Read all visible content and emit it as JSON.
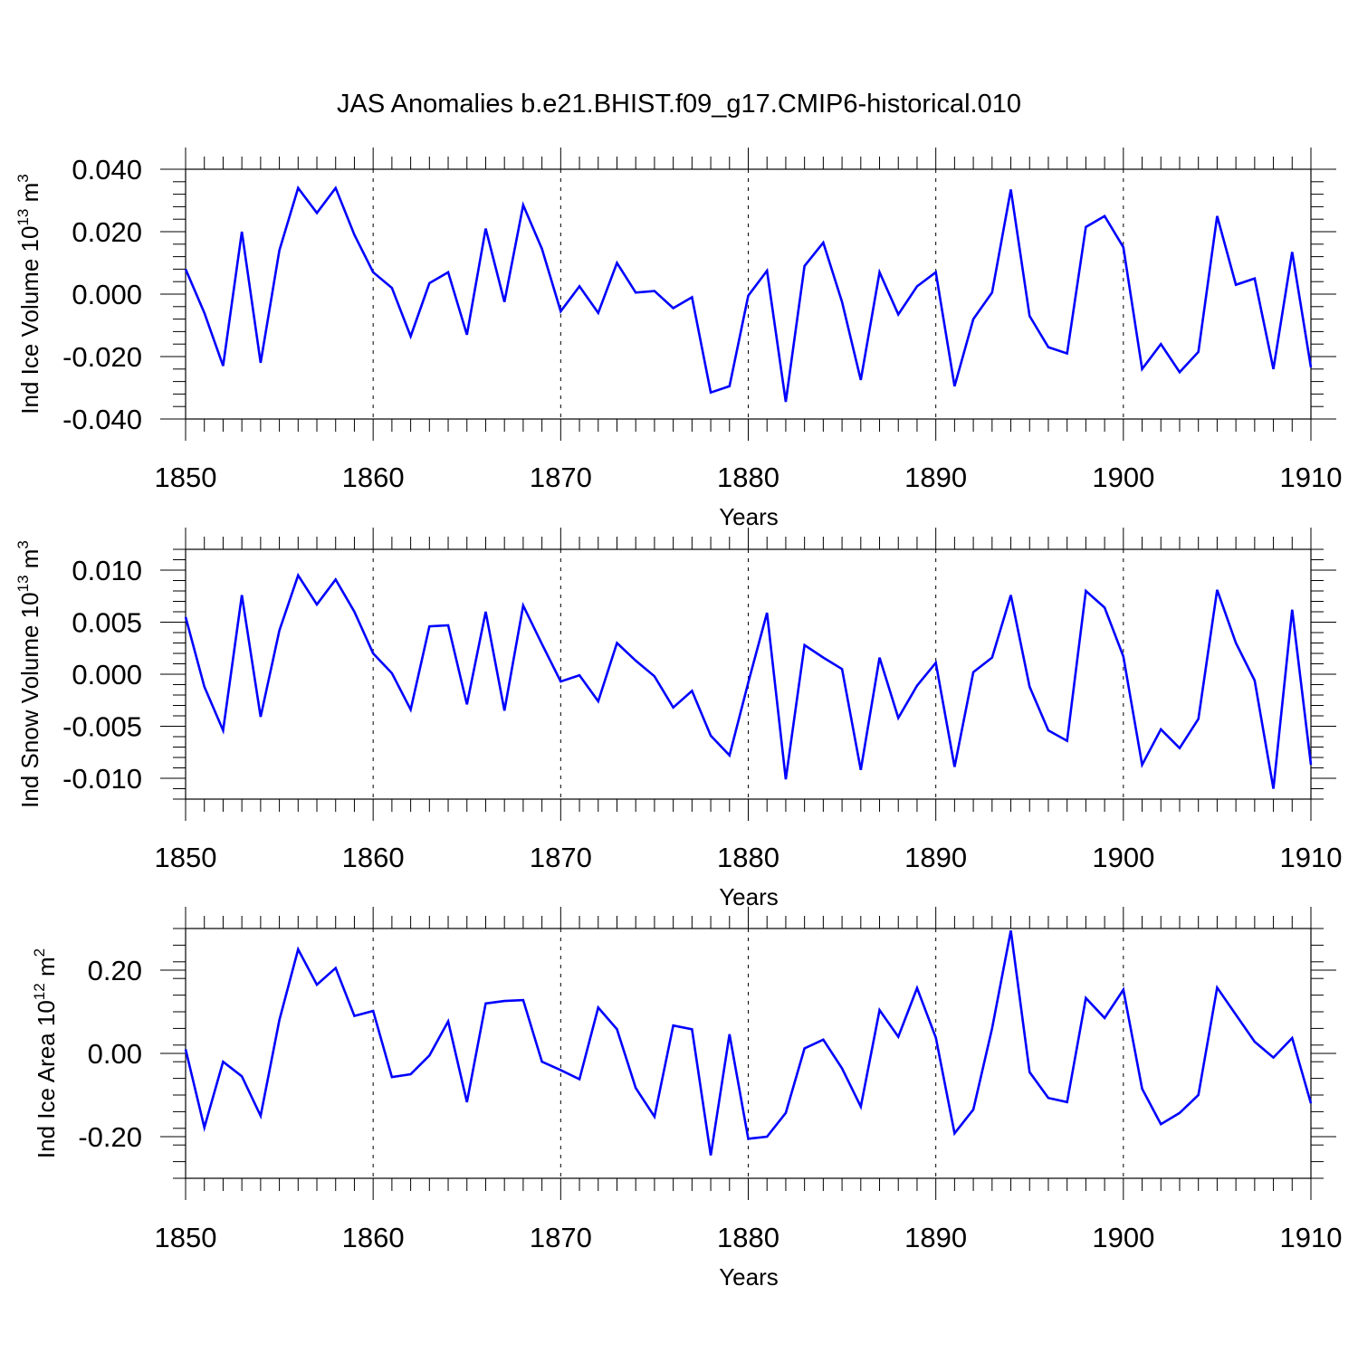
{
  "title": "JAS Anomalies b.e21.BHIST.f09_g17.CMIP6-historical.010",
  "line_color": "#0000ff",
  "chart_data": [
    {
      "type": "line",
      "name": "ice-volume",
      "ylabel_main": "Ind Ice Volume 10",
      "ylabel_exp": "13",
      "ylabel_unit": " m",
      "ylabel_unit_exp": "3",
      "xlabel": "Years",
      "xlim": [
        1850,
        1910
      ],
      "ylim": [
        -0.04,
        0.04
      ],
      "xticks": [
        1850,
        1860,
        1870,
        1880,
        1890,
        1900,
        1910
      ],
      "yticks": [
        -0.04,
        -0.02,
        0.0,
        0.02,
        0.04
      ],
      "ytick_labels": [
        "-0.040",
        "-0.020",
        "0.000",
        "0.020",
        "0.040"
      ],
      "x_start": 1850,
      "values": [
        0.008,
        -0.006,
        -0.023,
        0.02,
        -0.022,
        0.014,
        0.034,
        0.026,
        0.034,
        0.019,
        0.007,
        0.002,
        -0.0135,
        0.0035,
        0.007,
        -0.013,
        0.021,
        -0.0025,
        0.0285,
        0.0145,
        -0.0055,
        0.0025,
        -0.006,
        0.01,
        0.0005,
        0.001,
        -0.0045,
        -0.001,
        -0.0315,
        -0.0295,
        -0.0005,
        0.0075,
        -0.0345,
        0.009,
        0.0165,
        -0.0025,
        -0.0275,
        0.007,
        -0.0065,
        0.0025,
        0.007,
        -0.0295,
        -0.008,
        0.0005,
        0.0335,
        -0.007,
        -0.017,
        -0.019,
        0.0215,
        0.025,
        0.015,
        -0.024,
        -0.016,
        -0.025,
        -0.0185,
        0.025,
        0.003,
        0.005,
        -0.024,
        0.0135,
        -0.0235
      ]
    },
    {
      "type": "line",
      "name": "snow-volume",
      "ylabel_main": "Ind Snow Volume 10",
      "ylabel_exp": "13",
      "ylabel_unit": " m",
      "ylabel_unit_exp": "3",
      "xlabel": "Years",
      "xlim": [
        1850,
        1910
      ],
      "ylim": [
        -0.012,
        0.012
      ],
      "xticks": [
        1850,
        1860,
        1870,
        1880,
        1890,
        1900,
        1910
      ],
      "yticks": [
        -0.01,
        -0.005,
        0.0,
        0.005,
        0.01
      ],
      "ytick_labels": [
        "-0.010",
        "-0.005",
        "0.000",
        "0.005",
        "0.010"
      ],
      "x_start": 1850,
      "values": [
        0.0055,
        -0.0012,
        -0.0054,
        0.0076,
        -0.0041,
        0.0042,
        0.0095,
        0.0067,
        0.0091,
        0.006,
        0.002,
        0.0001,
        -0.0034,
        0.0046,
        0.0047,
        -0.0029,
        0.006,
        -0.0035,
        0.0066,
        0.0029,
        -0.0007,
        -0.0001,
        -0.0026,
        0.003,
        0.0013,
        -0.0002,
        -0.0032,
        -0.0016,
        -0.0059,
        -0.0078,
        -0.0008,
        0.0059,
        -0.0101,
        0.0028,
        0.0016,
        0.0005,
        -0.0092,
        0.0016,
        -0.0042,
        -0.0011,
        0.0011,
        -0.0089,
        0.0002,
        0.0016,
        0.0076,
        -0.0012,
        -0.0054,
        -0.0064,
        0.008,
        0.0064,
        0.0017,
        -0.0087,
        -0.0053,
        -0.0071,
        -0.0043,
        0.0081,
        0.003,
        -0.0006,
        -0.011,
        0.0062,
        -0.0087
      ]
    },
    {
      "type": "line",
      "name": "ice-area",
      "ylabel_main": "Ind Ice Area 10",
      "ylabel_exp": "12",
      "ylabel_unit": " m",
      "ylabel_unit_exp": "2",
      "xlabel": "Years",
      "xlim": [
        1850,
        1910
      ],
      "ylim": [
        -0.3,
        0.3
      ],
      "xticks": [
        1850,
        1860,
        1870,
        1880,
        1890,
        1900,
        1910
      ],
      "yticks": [
        -0.2,
        0.0,
        0.2
      ],
      "ytick_labels": [
        "-0.20",
        "0.00",
        "0.20"
      ],
      "x_start": 1850,
      "values": [
        0.01,
        -0.178,
        -0.02,
        -0.055,
        -0.15,
        0.08,
        0.25,
        0.165,
        0.205,
        0.09,
        0.102,
        -0.057,
        -0.05,
        -0.005,
        0.077,
        -0.117,
        0.12,
        0.126,
        0.128,
        -0.02,
        -0.04,
        -0.062,
        0.11,
        0.058,
        -0.083,
        -0.152,
        0.067,
        0.058,
        -0.245,
        0.046,
        -0.205,
        -0.2,
        -0.143,
        0.012,
        0.033,
        -0.036,
        -0.128,
        0.104,
        0.04,
        0.157,
        0.038,
        -0.192,
        -0.135,
        0.06,
        0.295,
        -0.045,
        -0.107,
        -0.117,
        0.133,
        0.085,
        0.153,
        -0.085,
        -0.17,
        -0.143,
        -0.1,
        0.158,
        0.093,
        0.028,
        -0.01,
        0.037,
        -0.12
      ]
    }
  ]
}
